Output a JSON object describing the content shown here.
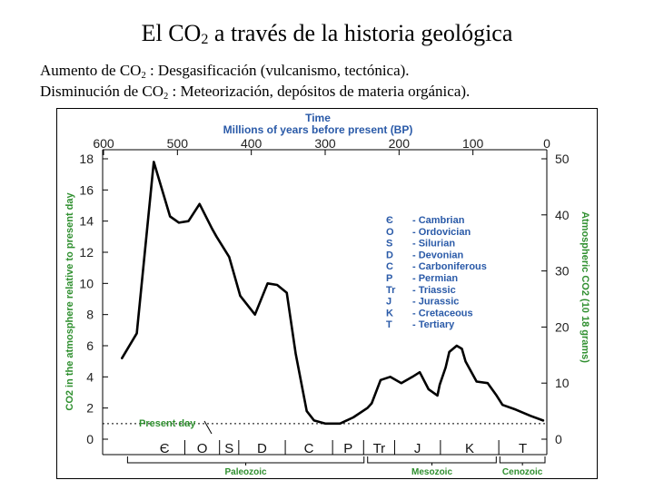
{
  "slide": {
    "title_main": "El CO",
    "title_sub": "2",
    "title_rest": " a través de la historia geológica",
    "line1_a": "Aumento de CO",
    "line1_sub": "2",
    "line1_b": " : Desgasificación (vulcanismo, tectónica).",
    "line2_a": "Disminución de CO",
    "line2_sub": "2",
    "line2_b": " : Meteorización, depósitos de materia orgánica)."
  },
  "chart_data": {
    "type": "line",
    "title": "Time",
    "subtitle": "Millions of years before present (BP)",
    "x": [
      575,
      555,
      532,
      510,
      498,
      485,
      470,
      453,
      447,
      430,
      415,
      395,
      378,
      365,
      352,
      340,
      325,
      315,
      300,
      280,
      262,
      243,
      237,
      225,
      212,
      197,
      182,
      172,
      160,
      148,
      145,
      137,
      132,
      122,
      115,
      110,
      95,
      80,
      68,
      60,
      42,
      22,
      5
    ],
    "series": [
      {
        "name": "",
        "values": [
          5.2,
          6.8,
          17.8,
          14.3,
          13.9,
          14.0,
          15.1,
          13.5,
          13.0,
          11.7,
          9.2,
          8.0,
          10.0,
          9.9,
          9.4,
          5.5,
          1.8,
          1.2,
          1.0,
          1.0,
          1.4,
          2.0,
          2.3,
          3.8,
          4.0,
          3.6,
          4.0,
          4.3,
          3.2,
          2.8,
          3.5,
          4.6,
          5.6,
          6.0,
          5.8,
          5.0,
          3.7,
          3.6,
          2.8,
          2.2,
          1.9,
          1.5,
          1.2
        ]
      }
    ],
    "xlim": [
      600,
      0
    ],
    "ylim": [
      0,
      18
    ],
    "ylim_right": [
      0,
      50
    ],
    "x_ticks": [
      600,
      500,
      400,
      300,
      200,
      100,
      0
    ],
    "y_ticks": [
      0,
      2,
      4,
      6,
      8,
      10,
      12,
      14,
      16,
      18
    ],
    "y_ticks_right": [
      0,
      10,
      20,
      30,
      40,
      50
    ],
    "ylabel": "CO2 in the atmosphere relative to present day",
    "ylabel_right": "Atmospheric CO2 (10 18 grams)",
    "present_day_label": "Present day",
    "present_day_value": 1,
    "legend": [
      {
        "code": "Є",
        "name": "Cambrian"
      },
      {
        "code": "O",
        "name": "Ordovician"
      },
      {
        "code": "S",
        "name": "Silurian"
      },
      {
        "code": "D",
        "name": "Devonian"
      },
      {
        "code": "C",
        "name": "Carboniferous"
      },
      {
        "code": "P",
        "name": "Permian"
      },
      {
        "code": "Tr",
        "name": "Triassic"
      },
      {
        "code": "J",
        "name": "Jurassic"
      },
      {
        "code": "K",
        "name": "Cretaceous"
      },
      {
        "code": "T",
        "name": "Tertiary"
      }
    ],
    "legend_position": "center-right",
    "periods": [
      {
        "label": "Є",
        "start": 545,
        "end": 490
      },
      {
        "label": "O",
        "end": 443,
        "start": 490
      },
      {
        "label": "S",
        "start": 443,
        "end": 417
      },
      {
        "label": "D",
        "start": 417,
        "end": 354
      },
      {
        "label": "C",
        "start": 354,
        "end": 290
      },
      {
        "label": "P",
        "start": 290,
        "end": 248
      },
      {
        "label": "Tr",
        "start": 248,
        "end": 206
      },
      {
        "label": "J",
        "start": 206,
        "end": 144
      },
      {
        "label": "K",
        "start": 144,
        "end": 65
      },
      {
        "label": "T",
        "start": 65,
        "end": 0
      }
    ],
    "eras": [
      {
        "label": "Paleozoic",
        "start": 570,
        "end": 245
      },
      {
        "label": "Mesozoic",
        "start": 245,
        "end": 66
      },
      {
        "label": "Cenozoic",
        "start": 66,
        "end": 0
      }
    ]
  }
}
